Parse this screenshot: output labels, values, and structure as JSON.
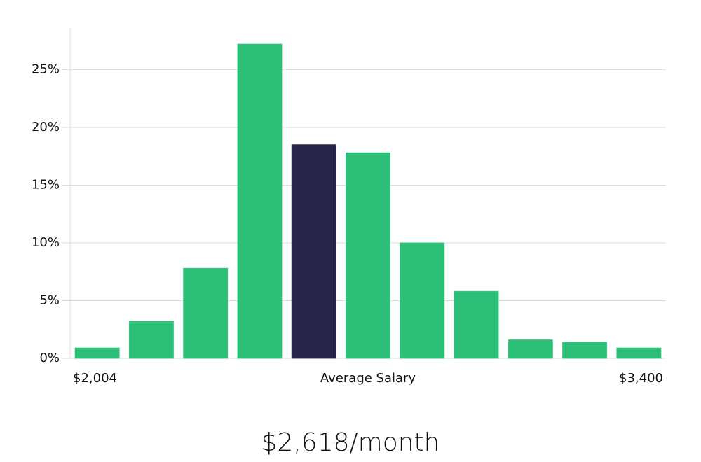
{
  "chart_data": {
    "type": "bar",
    "categories": [
      null,
      null,
      null,
      null,
      null,
      null,
      null,
      null,
      null,
      null,
      null
    ],
    "values": [
      0.9,
      3.2,
      7.8,
      27.2,
      18.5,
      17.8,
      10.0,
      5.8,
      1.6,
      1.4,
      0.9
    ],
    "colors": [
      "#2cbf78",
      "#2cbf78",
      "#2cbf78",
      "#2cbf78",
      "#27254a",
      "#2cbf78",
      "#2cbf78",
      "#2cbf78",
      "#2cbf78",
      "#2cbf78",
      "#2cbf78"
    ],
    "ylim": [
      0,
      28.6
    ],
    "yticks": [
      {
        "value": 0,
        "label": "0%"
      },
      {
        "value": 5,
        "label": "5%"
      },
      {
        "value": 10,
        "label": "10%"
      },
      {
        "value": 15,
        "label": "15%"
      },
      {
        "value": 20,
        "label": "20%"
      },
      {
        "value": 25,
        "label": "25%"
      }
    ],
    "grid": true,
    "x_labels": [
      "$2,004",
      "Average Salary",
      "$3,400"
    ],
    "summary": "$2,618/month"
  }
}
